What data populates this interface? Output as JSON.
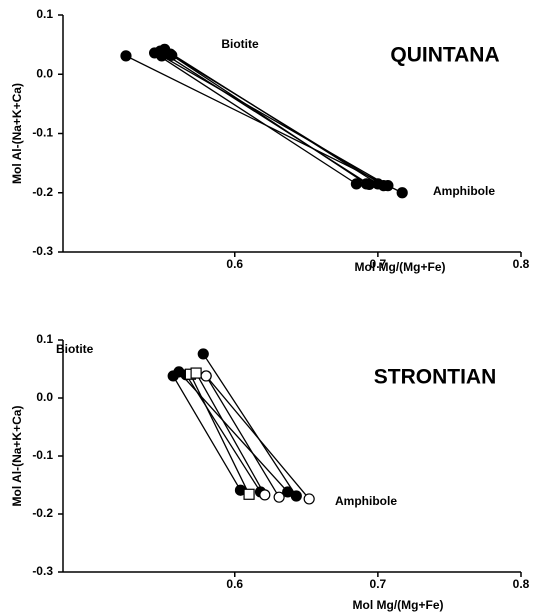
{
  "chart_data": [
    {
      "type": "scatter",
      "title": "QUINTANA",
      "xlabel": "Mol Mg/(Mg+Fe)",
      "ylabel": "Mol  Al-(Na+K+Ca)",
      "annotations": [
        "Biotite",
        "Amphibole"
      ],
      "xlim": [
        0.48,
        0.8
      ],
      "xticks": [
        0.6,
        0.7,
        0.8
      ],
      "ylim": [
        -0.3,
        0.1
      ],
      "yticks": [
        0.1,
        {
          "value": 0,
          "label": "0.0"
        },
        -0.1,
        -0.2,
        -0.3
      ],
      "color": "#000000",
      "lines": [
        {
          "x": [
            0.524,
            0.717
          ],
          "y": [
            0.031,
            -0.2
          ],
          "markers": [
            "filled-circle",
            "filled-circle"
          ]
        },
        {
          "x": [
            0.544,
            0.685
          ],
          "y": [
            0.036,
            -0.185
          ],
          "markers": [
            "filled-circle",
            "filled-circle"
          ]
        },
        {
          "x": [
            0.548,
            0.694
          ],
          "y": [
            0.039,
            -0.186
          ],
          "markers": [
            "filled-circle",
            "filled-circle"
          ]
        },
        {
          "x": [
            0.551,
            0.7
          ],
          "y": [
            0.042,
            -0.185
          ],
          "markers": [
            "filled-circle",
            "filled-circle"
          ]
        },
        {
          "x": [
            0.555,
            0.704
          ],
          "y": [
            0.034,
            -0.188
          ],
          "markers": [
            "filled-circle",
            "filled-circle"
          ]
        },
        {
          "x": [
            0.549,
            0.707
          ],
          "y": [
            0.031,
            -0.188
          ],
          "markers": [
            "filled-circle",
            "filled-circle"
          ]
        },
        {
          "x": [
            0.556,
            0.692
          ],
          "y": [
            0.032,
            -0.185
          ],
          "markers": [
            "filled-circle",
            "filled-circle"
          ]
        }
      ]
    },
    {
      "type": "scatter",
      "title": "STRONTIAN",
      "xlabel": "Mol Mg/(Mg+Fe)",
      "ylabel": "Mol  Al-(Na+K+Ca)",
      "annotations": [
        "Biotite",
        "Amphibole"
      ],
      "xlim": [
        0.48,
        0.8
      ],
      "xticks": [
        0.6,
        0.7,
        0.8
      ],
      "ylim": [
        -0.3,
        0.1
      ],
      "yticks": [
        0.1,
        {
          "value": 0,
          "label": "0.0"
        },
        -0.1,
        -0.2,
        -0.3
      ],
      "color": "#000000",
      "lines": [
        {
          "x": [
            0.578,
            0.643
          ],
          "y": [
            0.076,
            -0.169
          ],
          "markers": [
            "filled-circle",
            "filled-circle"
          ]
        },
        {
          "x": [
            0.557,
            0.604
          ],
          "y": [
            0.038,
            -0.159
          ],
          "markers": [
            "filled-circle",
            "filled-circle"
          ]
        },
        {
          "x": [
            0.561,
            0.637
          ],
          "y": [
            0.045,
            -0.162
          ],
          "markers": [
            "filled-circle",
            "filled-circle"
          ]
        },
        {
          "x": [
            0.566,
            0.618
          ],
          "y": [
            0.04,
            -0.162
          ],
          "markers": [
            "filled-circle",
            "filled-circle"
          ]
        },
        {
          "x": [
            0.569,
            0.61
          ],
          "y": [
            0.041,
            -0.166
          ],
          "markers": [
            "open-square",
            "open-square"
          ]
        },
        {
          "x": [
            0.573,
            0.621
          ],
          "y": [
            0.043,
            -0.167
          ],
          "markers": [
            "open-square",
            "open-circle"
          ]
        },
        {
          "x": [
            0.58,
            0.631
          ],
          "y": [
            0.038,
            -0.171
          ],
          "markers": [
            "open-circle",
            "open-circle"
          ]
        },
        {
          "x": [
            0.58,
            0.652
          ],
          "y": [
            0.038,
            -0.174
          ],
          "markers": [
            "open-circle",
            "open-circle"
          ]
        }
      ]
    }
  ]
}
